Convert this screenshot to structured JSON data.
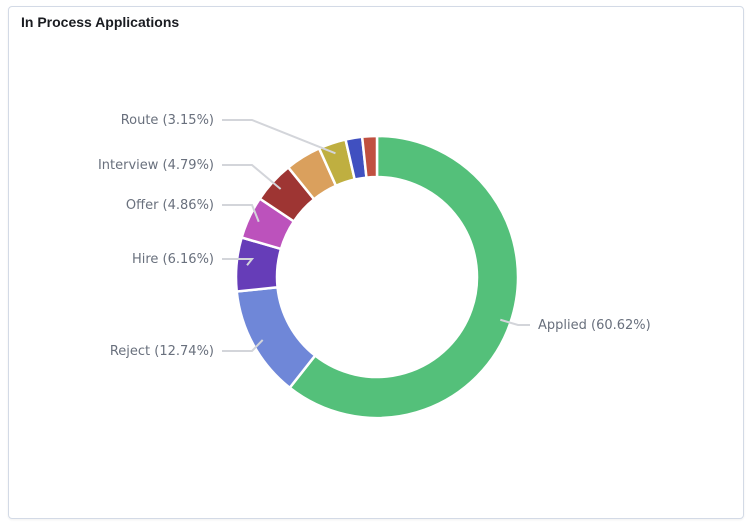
{
  "panel": {
    "title": "In Process Applications"
  },
  "chart_data": {
    "type": "pie",
    "donut": true,
    "title": "",
    "slices": [
      {
        "name": "Applied",
        "value": 60.62,
        "color": "#54c07a",
        "label": "Applied (60.62%)"
      },
      {
        "name": "Reject",
        "value": 12.74,
        "color": "#6f87d8",
        "label": "Reject (12.74%)"
      },
      {
        "name": "Hire",
        "value": 6.16,
        "color": "#663db8",
        "label": "Hire (6.16%)"
      },
      {
        "name": "Offer",
        "value": 4.86,
        "color": "#bc52bc",
        "label": "Offer (4.86%)"
      },
      {
        "name": "Interview",
        "value": 4.79,
        "color": "#9e3533",
        "label": "Interview (4.79%)"
      },
      {
        "name": "",
        "value": 4.1,
        "color": "#daa05d",
        "label": ""
      },
      {
        "name": "Route",
        "value": 3.15,
        "color": "#bfaf40",
        "label": "Route (3.15%)"
      },
      {
        "name": "",
        "value": 1.9,
        "color": "#4050c0",
        "label": ""
      },
      {
        "name": "",
        "value": 1.68,
        "color": "#c05040",
        "label": ""
      }
    ]
  }
}
